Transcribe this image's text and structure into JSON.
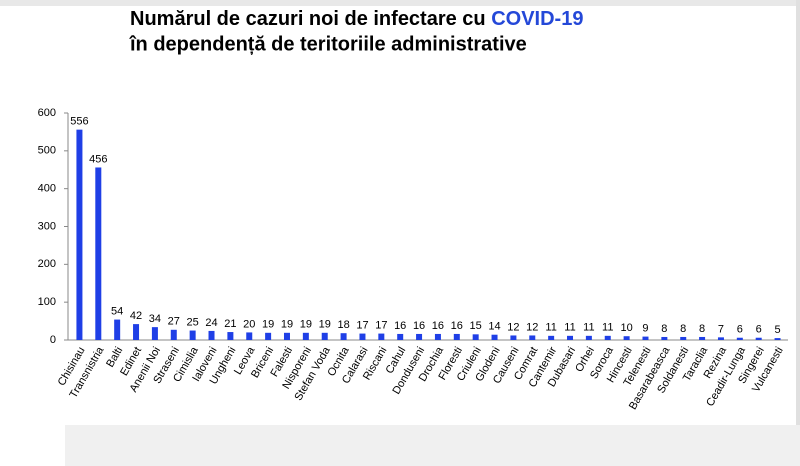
{
  "chart_data": {
    "type": "bar",
    "title": "Numărul de cazuri noi de infectare cu",
    "title_highlight": "COVID-19",
    "subtitle": "în dependență de teritoriile administrative",
    "categories": [
      "Chisinau",
      "Transnistria",
      "Balti",
      "Edinet",
      "Anenii Noi",
      "Straseni",
      "Cimislia",
      "Ialoveni",
      "Ungheni",
      "Leova",
      "Briceni",
      "Falesti",
      "Nisporeni",
      "Stefan Voda",
      "Ocnita",
      "Calarasi",
      "Riscani",
      "Cahul",
      "Donduseni",
      "Drochia",
      "Floresti",
      "Criuleni",
      "Glodeni",
      "Causeni",
      "Comrat",
      "Cantemir",
      "Dubasari",
      "Orhei",
      "Soroca",
      "Hincesti",
      "Telenesti",
      "Basarabeasca",
      "Soldanesti",
      "Taraclia",
      "Rezina",
      "Ceadir-Lunga",
      "Singerei",
      "Vulcanesti"
    ],
    "values": [
      556,
      456,
      54,
      42,
      34,
      27,
      25,
      24,
      21,
      20,
      19,
      19,
      19,
      19,
      18,
      17,
      17,
      16,
      16,
      16,
      16,
      15,
      14,
      12,
      12,
      11,
      11,
      11,
      11,
      10,
      9,
      8,
      8,
      8,
      7,
      6,
      6,
      5
    ],
    "color": "#1f3fe6",
    "highlight_color": "#2448d8",
    "ylim": [
      0,
      600
    ],
    "yticks": [
      0,
      100,
      200,
      300,
      400,
      500,
      600
    ],
    "grid": false
  }
}
